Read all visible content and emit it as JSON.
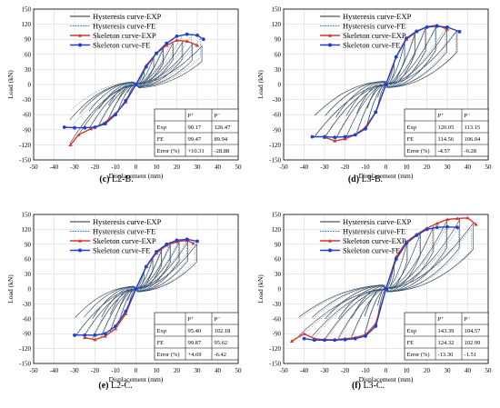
{
  "figure": {
    "x_label": "Displacement (mm)",
    "y_label": "Load (kN)",
    "colors": {
      "exp_hyst": "#2a2a2a",
      "fe_hyst": "#2f6fb3",
      "exp_skel": "#d23a2a",
      "fe_skel": "#1f3fd0",
      "grid": "#d0d0d0"
    }
  },
  "chart_data": [
    {
      "type": "line",
      "caption_letter": "(c)",
      "caption_text": " L2-B.",
      "xlim": [
        -50,
        50
      ],
      "ylim": [
        -150,
        150
      ],
      "x_ticks": [
        "-50",
        "-40",
        "-30",
        "-20",
        "-10",
        "0",
        "10",
        "20",
        "30",
        "40",
        "50"
      ],
      "y_ticks": [
        "150",
        "120",
        "90",
        "60",
        "30",
        "0",
        "-30",
        "-60",
        "-90",
        "-120",
        "-150"
      ],
      "legend_entries": [
        "Hysteresis curve-EXP",
        "Hysteresis curve-FE",
        "Skeleton curve-EXP",
        "Skeleton curve-FE"
      ],
      "skeleton_exp": {
        "x": [
          -32,
          -28,
          -22,
          -16,
          -10,
          -5,
          0,
          5,
          10,
          15,
          20,
          25,
          30
        ],
        "y": [
          -120,
          -100,
          -88,
          -78,
          -58,
          -35,
          0,
          38,
          62,
          78,
          88,
          86,
          78
        ]
      },
      "skeleton_fe": {
        "x": [
          -35,
          -30,
          -25,
          -20,
          -15,
          -10,
          -5,
          0,
          5,
          10,
          15,
          20,
          25,
          30,
          33
        ],
        "y": [
          -85,
          -86,
          -86,
          -85,
          -78,
          -60,
          -32,
          0,
          35,
          62,
          82,
          96,
          100,
          98,
          90
        ]
      },
      "max_disp": 33,
      "table": {
        "headers": [
          "",
          "P⁺",
          "P⁻"
        ],
        "rows": [
          [
            "Exp",
            "90.17",
            "126.47"
          ],
          [
            "FE",
            "99.47",
            "89.94"
          ],
          [
            "Error (%)",
            "+10.31",
            "-28.88"
          ]
        ]
      }
    },
    {
      "type": "line",
      "caption_letter": "(d)",
      "caption_text": " L3-B.",
      "xlim": [
        -50,
        50
      ],
      "ylim": [
        -150,
        150
      ],
      "x_ticks": [
        "-50",
        "-40",
        "-30",
        "-20",
        "-10",
        "0",
        "10",
        "20",
        "30",
        "40",
        "50"
      ],
      "y_ticks": [
        "150",
        "120",
        "90",
        "60",
        "30",
        "0",
        "-30",
        "-60",
        "-90",
        "-120",
        "-150"
      ],
      "legend_entries": [
        "Hysteresis curve-EXP",
        "Hysteresis curve-FE",
        "Skeleton curve-EXP",
        "Skeleton curve-FE"
      ],
      "skeleton_exp": {
        "x": [
          -30,
          -25,
          -20,
          -15,
          -10,
          -5,
          0,
          5,
          10,
          15,
          20,
          25,
          30
        ],
        "y": [
          -105,
          -112,
          -108,
          -100,
          -85,
          -55,
          0,
          55,
          90,
          105,
          115,
          118,
          110
        ]
      },
      "skeleton_fe": {
        "x": [
          -36,
          -30,
          -25,
          -20,
          -15,
          -10,
          -5,
          0,
          5,
          10,
          15,
          20,
          25,
          30,
          36
        ],
        "y": [
          -104,
          -104,
          -105,
          -104,
          -100,
          -88,
          -55,
          0,
          55,
          92,
          106,
          114,
          116,
          114,
          105
        ]
      },
      "max_disp": 36,
      "table": {
        "headers": [
          "",
          "P⁺",
          "P⁻"
        ],
        "rows": [
          [
            "Exp",
            "120.05",
            "113.15"
          ],
          [
            "FE",
            "114.56",
            "106.04"
          ],
          [
            "Error (%)",
            "-4.57",
            "-6.28"
          ]
        ]
      }
    },
    {
      "type": "line",
      "caption_letter": "(e)",
      "caption_text": " L2-C.",
      "xlim": [
        -50,
        50
      ],
      "ylim": [
        -150,
        150
      ],
      "x_ticks": [
        "-50",
        "-40",
        "-30",
        "-20",
        "-10",
        "0",
        "10",
        "20",
        "30",
        "40",
        "50"
      ],
      "y_ticks": [
        "150",
        "120",
        "90",
        "60",
        "30",
        "0",
        "-30",
        "-60",
        "-90",
        "-120",
        "-150"
      ],
      "legend_entries": [
        "Hysteresis curve-EXP",
        "Hysteresis curve-FE",
        "Skeleton curve-EXP",
        "Skeleton curve-FE"
      ],
      "skeleton_exp": {
        "x": [
          -25,
          -20,
          -15,
          -10,
          -5,
          0,
          5,
          10,
          15,
          20,
          25,
          28
        ],
        "y": [
          -98,
          -102,
          -95,
          -80,
          -50,
          0,
          45,
          72,
          88,
          95,
          98,
          92
        ]
      },
      "skeleton_fe": {
        "x": [
          -30,
          -25,
          -20,
          -15,
          -10,
          -5,
          0,
          5,
          10,
          15,
          20,
          25,
          30
        ],
        "y": [
          -93,
          -93,
          -93,
          -90,
          -75,
          -45,
          0,
          45,
          75,
          90,
          98,
          100,
          96
        ]
      },
      "max_disp": 30,
      "table": {
        "headers": [
          "",
          "P⁺",
          "P⁻"
        ],
        "rows": [
          [
            "Exp",
            "95.40",
            "102.18"
          ],
          [
            "FE",
            "99.87",
            "95.62"
          ],
          [
            "Error (%)",
            "+4.69",
            "-6.42"
          ]
        ]
      }
    },
    {
      "type": "line",
      "caption_letter": "(f)",
      "caption_text": " L3-C.",
      "xlim": [
        -50,
        50
      ],
      "ylim": [
        -150,
        150
      ],
      "x_ticks": [
        "-50",
        "-40",
        "-30",
        "-20",
        "-10",
        "0",
        "10",
        "20",
        "30",
        "40",
        "50"
      ],
      "y_ticks": [
        "150",
        "120",
        "90",
        "60",
        "30",
        "0",
        "-30",
        "-60",
        "-90",
        "-120",
        "-150"
      ],
      "legend_entries": [
        "Hysteresis curve-EXP",
        "Hysteresis curve-FE",
        "Skeleton curve-EXP",
        "Skeleton curve-FE"
      ],
      "skeleton_exp": {
        "x": [
          -46,
          -40,
          -35,
          -30,
          -25,
          -20,
          -15,
          -10,
          -5,
          0,
          5,
          10,
          15,
          20,
          25,
          30,
          35,
          40,
          44
        ],
        "y": [
          -105,
          -90,
          -100,
          -102,
          -102,
          -100,
          -98,
          -92,
          -70,
          0,
          65,
          95,
          110,
          122,
          132,
          140,
          142,
          143,
          130
        ]
      },
      "skeleton_fe": {
        "x": [
          -40,
          -35,
          -30,
          -25,
          -20,
          -15,
          -10,
          -5,
          0,
          5,
          10,
          15,
          20,
          25,
          30,
          35
        ],
        "y": [
          -100,
          -103,
          -103,
          -103,
          -102,
          -100,
          -95,
          -75,
          0,
          60,
          92,
          108,
          120,
          124,
          125,
          124
        ]
      },
      "max_disp": 45,
      "table": {
        "headers": [
          "",
          "P⁺",
          "P⁻"
        ],
        "rows": [
          [
            "Exp",
            "143.39",
            "104.57"
          ],
          [
            "FE",
            "124.32",
            "102.99"
          ],
          [
            "Error (%)",
            "-13.30",
            "-1.51"
          ]
        ]
      }
    }
  ]
}
